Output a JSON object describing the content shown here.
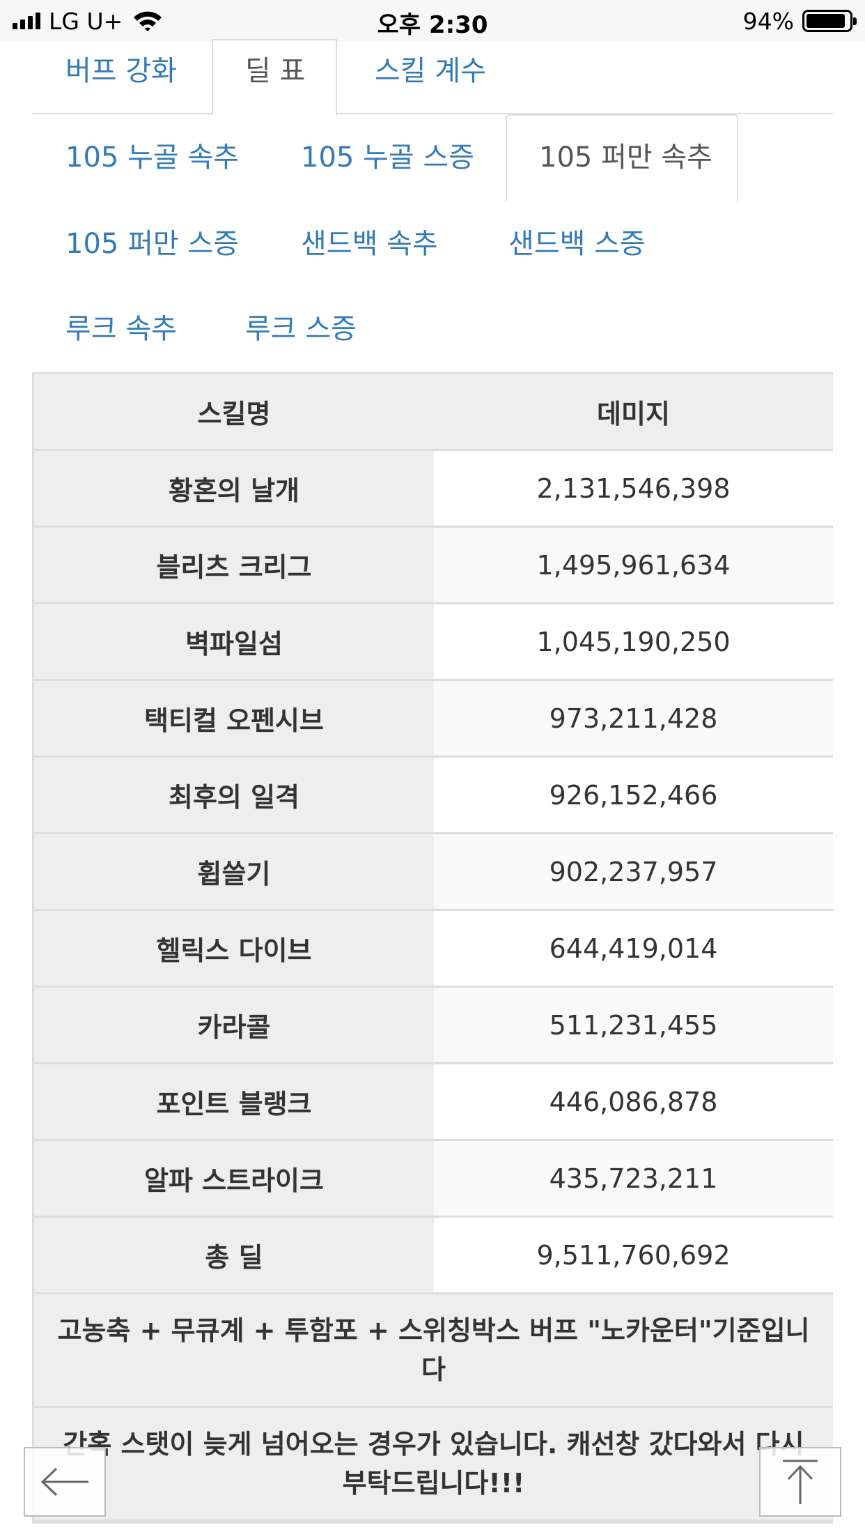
{
  "status_bar": {
    "carrier": "LG U+",
    "time": "오후 2:30",
    "battery": "94%"
  },
  "main_tabs": [
    {
      "label": "버프 강화",
      "active": false
    },
    {
      "label": "딜 표",
      "active": true
    },
    {
      "label": "스킬 계수",
      "active": false
    }
  ],
  "sub_tabs": [
    {
      "label": "105 누골 속추",
      "active": false
    },
    {
      "label": "105 누골 스증",
      "active": false
    },
    {
      "label": "105 퍼만 속추",
      "active": true
    },
    {
      "label": "105 퍼만 스증",
      "active": false
    },
    {
      "label": "샌드백 속추",
      "active": false
    },
    {
      "label": "샌드백 스증",
      "active": false
    },
    {
      "label": "루크 속추",
      "active": false
    },
    {
      "label": "루크 스증",
      "active": false
    }
  ],
  "table": {
    "headers": [
      "스킬명",
      "데미지"
    ],
    "rows": [
      {
        "skill": "황혼의 날개",
        "damage": "2,131,546,398"
      },
      {
        "skill": "블리츠 크리그",
        "damage": "1,495,961,634"
      },
      {
        "skill": "벽파일섬",
        "damage": "1,045,190,250"
      },
      {
        "skill": "택티컬 오펜시브",
        "damage": "973,211,428"
      },
      {
        "skill": "최후의 일격",
        "damage": "926,152,466"
      },
      {
        "skill": "휩쓸기",
        "damage": "902,237,957"
      },
      {
        "skill": "헬릭스 다이브",
        "damage": "644,419,014"
      },
      {
        "skill": "카라콜",
        "damage": "511,231,455"
      },
      {
        "skill": "포인트 블랭크",
        "damage": "446,086,878"
      },
      {
        "skill": "알파 스트라이크",
        "damage": "435,723,211"
      }
    ],
    "total": {
      "label": "총 딜",
      "damage": "9,511,760,692"
    },
    "notes": [
      "고농축 + 무큐계 + 투함포 + 스위칭박스 버프 \"노카운터\"기준입니다",
      "간혹 스탯이 늦게 넘어오는 경우가 있습니다. 캐선창 갔다와서 다시 부탁드립니다!!!"
    ]
  },
  "nav": {
    "back_icon": "arrow-left-icon",
    "top_icon": "arrow-up-icon"
  }
}
